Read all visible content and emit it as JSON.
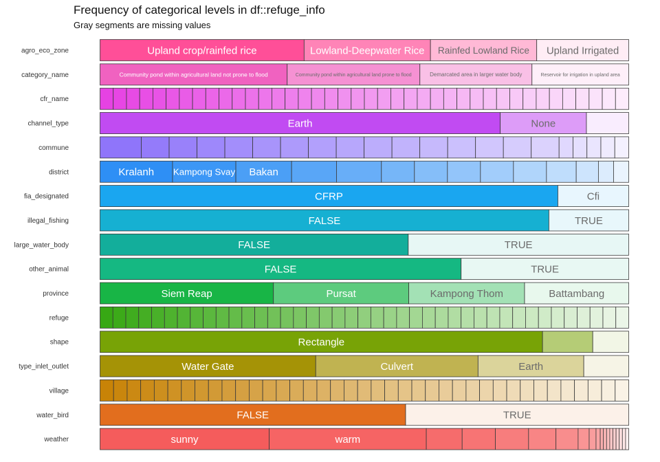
{
  "chart_data": {
    "type": "bar",
    "orientation": "horizontal",
    "stacked": "proportional",
    "title": "Frequency of categorical levels in df::refuge_info",
    "subtitle": "Gray segments are missing values",
    "xlabel": "",
    "ylabel": "",
    "xlim": [
      0,
      1
    ],
    "grid": false,
    "legend": "none",
    "rows": [
      {
        "name": "agro_eco_zone",
        "color": "#FF4F98",
        "segments": [
          {
            "label": "Upland crop/rainfed rice",
            "value": 0.386
          },
          {
            "label": "Lowland-Deepwater Rice",
            "value": 0.239
          },
          {
            "label": "Rainfed Lowland Rice",
            "value": 0.201
          },
          {
            "label": "Upland Irrigated",
            "value": 0.174
          }
        ]
      },
      {
        "name": "category_name",
        "color": "#F062C0",
        "segments": [
          {
            "label": "Community pond within agricultural land not prone to flood",
            "value": 0.354
          },
          {
            "label": "Community pond within agricultural land prone to flood",
            "value": 0.251
          },
          {
            "label": "Demarcated area in larger water body",
            "value": 0.212
          },
          {
            "label": "Reservoir for irrigation in upland area",
            "value": 0.183
          }
        ]
      },
      {
        "name": "cfr_name",
        "color": "#E642E3",
        "segments": [
          {
            "label": "",
            "value": 1
          },
          {
            "label": "",
            "value": 1
          },
          {
            "label": "",
            "value": 1
          },
          {
            "label": "",
            "value": 1
          },
          {
            "label": "",
            "value": 1
          },
          {
            "label": "",
            "value": 1
          },
          {
            "label": "",
            "value": 1
          },
          {
            "label": "",
            "value": 1
          },
          {
            "label": "",
            "value": 1
          },
          {
            "label": "",
            "value": 1
          },
          {
            "label": "",
            "value": 1
          },
          {
            "label": "",
            "value": 1
          },
          {
            "label": "",
            "value": 1
          },
          {
            "label": "",
            "value": 1
          },
          {
            "label": "",
            "value": 1
          },
          {
            "label": "",
            "value": 1
          },
          {
            "label": "",
            "value": 1
          },
          {
            "label": "",
            "value": 1
          },
          {
            "label": "",
            "value": 1
          },
          {
            "label": "",
            "value": 1
          },
          {
            "label": "",
            "value": 1
          },
          {
            "label": "",
            "value": 1
          },
          {
            "label": "",
            "value": 1
          },
          {
            "label": "",
            "value": 1
          },
          {
            "label": "",
            "value": 1
          },
          {
            "label": "",
            "value": 1
          },
          {
            "label": "",
            "value": 1
          },
          {
            "label": "",
            "value": 1
          },
          {
            "label": "",
            "value": 1
          },
          {
            "label": "",
            "value": 1
          },
          {
            "label": "",
            "value": 1
          },
          {
            "label": "",
            "value": 1
          },
          {
            "label": "",
            "value": 1
          },
          {
            "label": "",
            "value": 1
          },
          {
            "label": "",
            "value": 1
          },
          {
            "label": "",
            "value": 1
          },
          {
            "label": "",
            "value": 1
          },
          {
            "label": "",
            "value": 1
          },
          {
            "label": "",
            "value": 1
          },
          {
            "label": "",
            "value": 1
          }
        ]
      },
      {
        "name": "channel_type",
        "color": "#C14BF2",
        "segments": [
          {
            "label": "Earth",
            "value": 0.757
          },
          {
            "label": "None",
            "value": 0.163
          },
          {
            "label": "",
            "value": 0.08
          }
        ]
      },
      {
        "name": "commune",
        "color": "#8F75FA",
        "segments": [
          {
            "label": "",
            "value": 0.08
          },
          {
            "label": "",
            "value": 0.054
          },
          {
            "label": "",
            "value": 0.054
          },
          {
            "label": "",
            "value": 0.054
          },
          {
            "label": "",
            "value": 0.054
          },
          {
            "label": "",
            "value": 0.054
          },
          {
            "label": "",
            "value": 0.054
          },
          {
            "label": "",
            "value": 0.054
          },
          {
            "label": "",
            "value": 0.054
          },
          {
            "label": "",
            "value": 0.054
          },
          {
            "label": "",
            "value": 0.054
          },
          {
            "label": "",
            "value": 0.054
          },
          {
            "label": "",
            "value": 0.054
          },
          {
            "label": "",
            "value": 0.054
          },
          {
            "label": "",
            "value": 0.054
          },
          {
            "label": "",
            "value": 0.054
          },
          {
            "label": "",
            "value": 0.027
          },
          {
            "label": "",
            "value": 0.027
          },
          {
            "label": "",
            "value": 0.027
          },
          {
            "label": "",
            "value": 0.027
          },
          {
            "label": "",
            "value": 0.027
          }
        ]
      },
      {
        "name": "district",
        "color": "#2E8FF5",
        "segments": [
          {
            "label": "Kralanh",
            "value": 0.134
          },
          {
            "label": "Kampong Svay",
            "value": 0.117
          },
          {
            "label": "Bakan",
            "value": 0.103
          },
          {
            "label": "",
            "value": 0.083
          },
          {
            "label": "",
            "value": 0.083
          },
          {
            "label": "",
            "value": 0.061
          },
          {
            "label": "",
            "value": 0.061
          },
          {
            "label": "",
            "value": 0.061
          },
          {
            "label": "",
            "value": 0.061
          },
          {
            "label": "",
            "value": 0.061
          },
          {
            "label": "",
            "value": 0.055
          },
          {
            "label": "",
            "value": 0.041
          },
          {
            "label": "",
            "value": 0.028
          },
          {
            "label": "",
            "value": 0.028
          }
        ]
      },
      {
        "name": "fia_designated",
        "color": "#1AA6F0",
        "segments": [
          {
            "label": "CFRP",
            "value": 0.866
          },
          {
            "label": "Cfi",
            "value": 0.134
          }
        ]
      },
      {
        "name": "illegal_fishing",
        "color": "#16B0D2",
        "segments": [
          {
            "label": "FALSE",
            "value": 0.849
          },
          {
            "label": "TRUE",
            "value": 0.151
          }
        ]
      },
      {
        "name": "large_water_body",
        "color": "#13AE9B",
        "segments": [
          {
            "label": "FALSE",
            "value": 0.583
          },
          {
            "label": "TRUE",
            "value": 0.417
          }
        ]
      },
      {
        "name": "other_animal",
        "color": "#15B882",
        "segments": [
          {
            "label": "FALSE",
            "value": 0.683
          },
          {
            "label": "TRUE",
            "value": 0.317
          }
        ]
      },
      {
        "name": "province",
        "color": "#18B546",
        "segments": [
          {
            "label": "Siem Reap",
            "value": 0.328
          },
          {
            "label": "Pursat",
            "value": 0.256
          },
          {
            "label": "Kampong Thom",
            "value": 0.219
          },
          {
            "label": "Battambang",
            "value": 0.197
          }
        ]
      },
      {
        "name": "refuge",
        "color": "#37A814",
        "segments": [
          {
            "label": "",
            "value": 1
          },
          {
            "label": "",
            "value": 1
          },
          {
            "label": "",
            "value": 1
          },
          {
            "label": "",
            "value": 1
          },
          {
            "label": "",
            "value": 1
          },
          {
            "label": "",
            "value": 1
          },
          {
            "label": "",
            "value": 1
          },
          {
            "label": "",
            "value": 1
          },
          {
            "label": "",
            "value": 1
          },
          {
            "label": "",
            "value": 1
          },
          {
            "label": "",
            "value": 1
          },
          {
            "label": "",
            "value": 1
          },
          {
            "label": "",
            "value": 1
          },
          {
            "label": "",
            "value": 1
          },
          {
            "label": "",
            "value": 1
          },
          {
            "label": "",
            "value": 1
          },
          {
            "label": "",
            "value": 1
          },
          {
            "label": "",
            "value": 1
          },
          {
            "label": "",
            "value": 1
          },
          {
            "label": "",
            "value": 1
          },
          {
            "label": "",
            "value": 1
          },
          {
            "label": "",
            "value": 1
          },
          {
            "label": "",
            "value": 1
          },
          {
            "label": "",
            "value": 1
          },
          {
            "label": "",
            "value": 1
          },
          {
            "label": "",
            "value": 1
          },
          {
            "label": "",
            "value": 1
          },
          {
            "label": "",
            "value": 1
          },
          {
            "label": "",
            "value": 1
          },
          {
            "label": "",
            "value": 1
          },
          {
            "label": "",
            "value": 1
          },
          {
            "label": "",
            "value": 1
          },
          {
            "label": "",
            "value": 1
          },
          {
            "label": "",
            "value": 1
          },
          {
            "label": "",
            "value": 1
          },
          {
            "label": "",
            "value": 1
          },
          {
            "label": "",
            "value": 1
          },
          {
            "label": "",
            "value": 1
          },
          {
            "label": "",
            "value": 1
          },
          {
            "label": "",
            "value": 1
          },
          {
            "label": "",
            "value": 1
          }
        ]
      },
      {
        "name": "shape",
        "color": "#78A306",
        "segments": [
          {
            "label": "Rectangle",
            "value": 0.837
          },
          {
            "label": "",
            "value": 0.095
          },
          {
            "label": "",
            "value": 0.068
          }
        ]
      },
      {
        "name": "type_inlet_outlet",
        "color": "#A59306",
        "segments": [
          {
            "label": "Water Gate",
            "value": 0.408
          },
          {
            "label": "Culvert",
            "value": 0.307
          },
          {
            "label": "Earth",
            "value": 0.2
          },
          {
            "label": "",
            "value": 0.085
          }
        ]
      },
      {
        "name": "village",
        "color": "#C88307",
        "segments": [
          {
            "label": "",
            "value": 1
          },
          {
            "label": "",
            "value": 1
          },
          {
            "label": "",
            "value": 1
          },
          {
            "label": "",
            "value": 1
          },
          {
            "label": "",
            "value": 1
          },
          {
            "label": "",
            "value": 1
          },
          {
            "label": "",
            "value": 1
          },
          {
            "label": "",
            "value": 1
          },
          {
            "label": "",
            "value": 1
          },
          {
            "label": "",
            "value": 1
          },
          {
            "label": "",
            "value": 1
          },
          {
            "label": "",
            "value": 1
          },
          {
            "label": "",
            "value": 1
          },
          {
            "label": "",
            "value": 1
          },
          {
            "label": "",
            "value": 1
          },
          {
            "label": "",
            "value": 1
          },
          {
            "label": "",
            "value": 1
          },
          {
            "label": "",
            "value": 1
          },
          {
            "label": "",
            "value": 1
          },
          {
            "label": "",
            "value": 1
          },
          {
            "label": "",
            "value": 1
          },
          {
            "label": "",
            "value": 1
          },
          {
            "label": "",
            "value": 1
          },
          {
            "label": "",
            "value": 1
          },
          {
            "label": "",
            "value": 1
          },
          {
            "label": "",
            "value": 1
          },
          {
            "label": "",
            "value": 1
          },
          {
            "label": "",
            "value": 1
          },
          {
            "label": "",
            "value": 1
          },
          {
            "label": "",
            "value": 1
          },
          {
            "label": "",
            "value": 1
          },
          {
            "label": "",
            "value": 1
          },
          {
            "label": "",
            "value": 1
          },
          {
            "label": "",
            "value": 1
          },
          {
            "label": "",
            "value": 1
          },
          {
            "label": "",
            "value": 1
          },
          {
            "label": "",
            "value": 1
          },
          {
            "label": "",
            "value": 1
          },
          {
            "label": "",
            "value": 1
          }
        ]
      },
      {
        "name": "water_bird",
        "color": "#E26E1E",
        "segments": [
          {
            "label": "FALSE",
            "value": 0.578
          },
          {
            "label": "TRUE",
            "value": 0.422
          }
        ]
      },
      {
        "name": "weather",
        "color": "#F55C5C",
        "segments": [
          {
            "label": "sunny",
            "value": 0.321
          },
          {
            "label": "warm",
            "value": 0.298
          },
          {
            "label": "",
            "value": 0.068
          },
          {
            "label": "",
            "value": 0.063
          },
          {
            "label": "",
            "value": 0.063
          },
          {
            "label": "",
            "value": 0.052
          },
          {
            "label": "",
            "value": 0.042
          },
          {
            "label": "",
            "value": 0.021
          },
          {
            "label": "",
            "value": 0.013
          },
          {
            "label": "",
            "value": 0.008
          },
          {
            "label": "",
            "value": 0.006
          },
          {
            "label": "",
            "value": 0.006
          },
          {
            "label": "",
            "value": 0.006
          },
          {
            "label": "",
            "value": 0.006
          },
          {
            "label": "",
            "value": 0.006
          },
          {
            "label": "",
            "value": 0.006
          },
          {
            "label": "",
            "value": 0.006
          },
          {
            "label": "",
            "value": 0.006
          },
          {
            "label": "",
            "value": 0.006
          }
        ]
      }
    ]
  }
}
